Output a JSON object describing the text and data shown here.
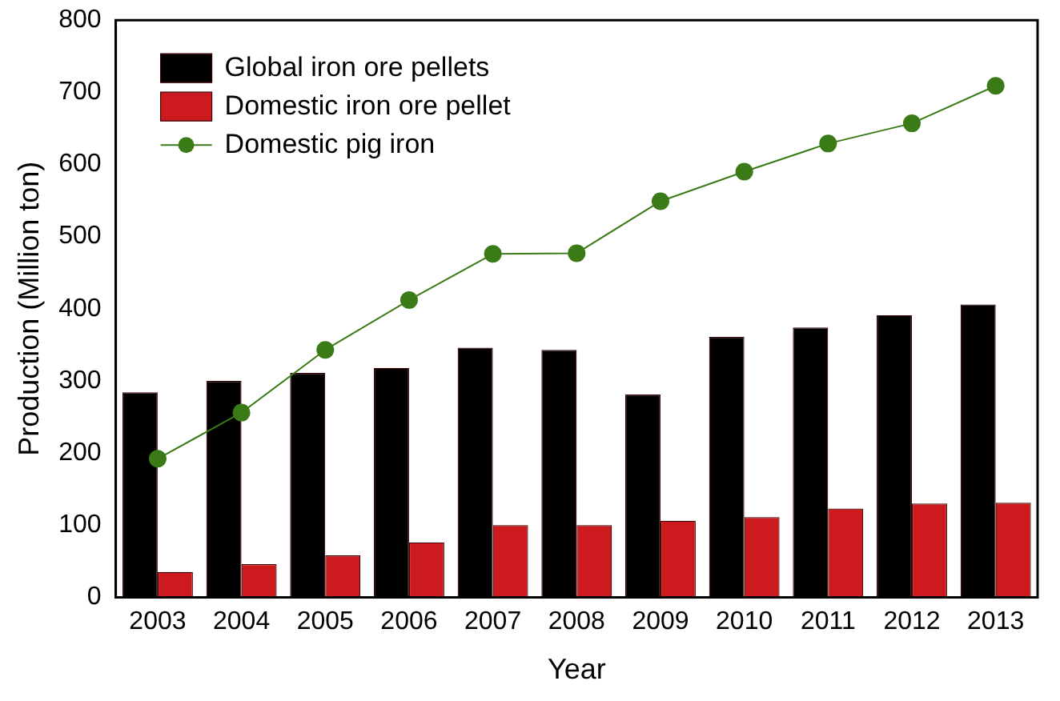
{
  "chart_data": {
    "type": "bar",
    "xlabel": "Year",
    "ylabel": "Production (Million ton)",
    "categories": [
      "2003",
      "2004",
      "2005",
      "2006",
      "2007",
      "2008",
      "2009",
      "2010",
      "2011",
      "2012",
      "2013"
    ],
    "series": [
      {
        "name": "Global iron ore pellets",
        "color": "#000000",
        "values": [
          284,
          300,
          311,
          318,
          346,
          343,
          281,
          361,
          374,
          391,
          406
        ]
      },
      {
        "name": "Domestic iron ore pellet",
        "color": "#cc1a1e",
        "values": [
          35,
          46,
          58,
          76,
          100,
          100,
          106,
          111,
          123,
          130,
          131
        ]
      },
      {
        "name": "Domestic pig iron",
        "type": "line",
        "color": "#3a7a17",
        "marker": "circle",
        "line_style": "solid",
        "values": [
          192,
          256,
          343,
          412,
          476,
          477,
          549,
          590,
          629,
          657,
          709
        ]
      }
    ],
    "ylim": [
      0,
      800
    ],
    "yticks": [
      0,
      100,
      200,
      300,
      400,
      500,
      600,
      700,
      800
    ],
    "grid": false,
    "legend": "top left"
  }
}
